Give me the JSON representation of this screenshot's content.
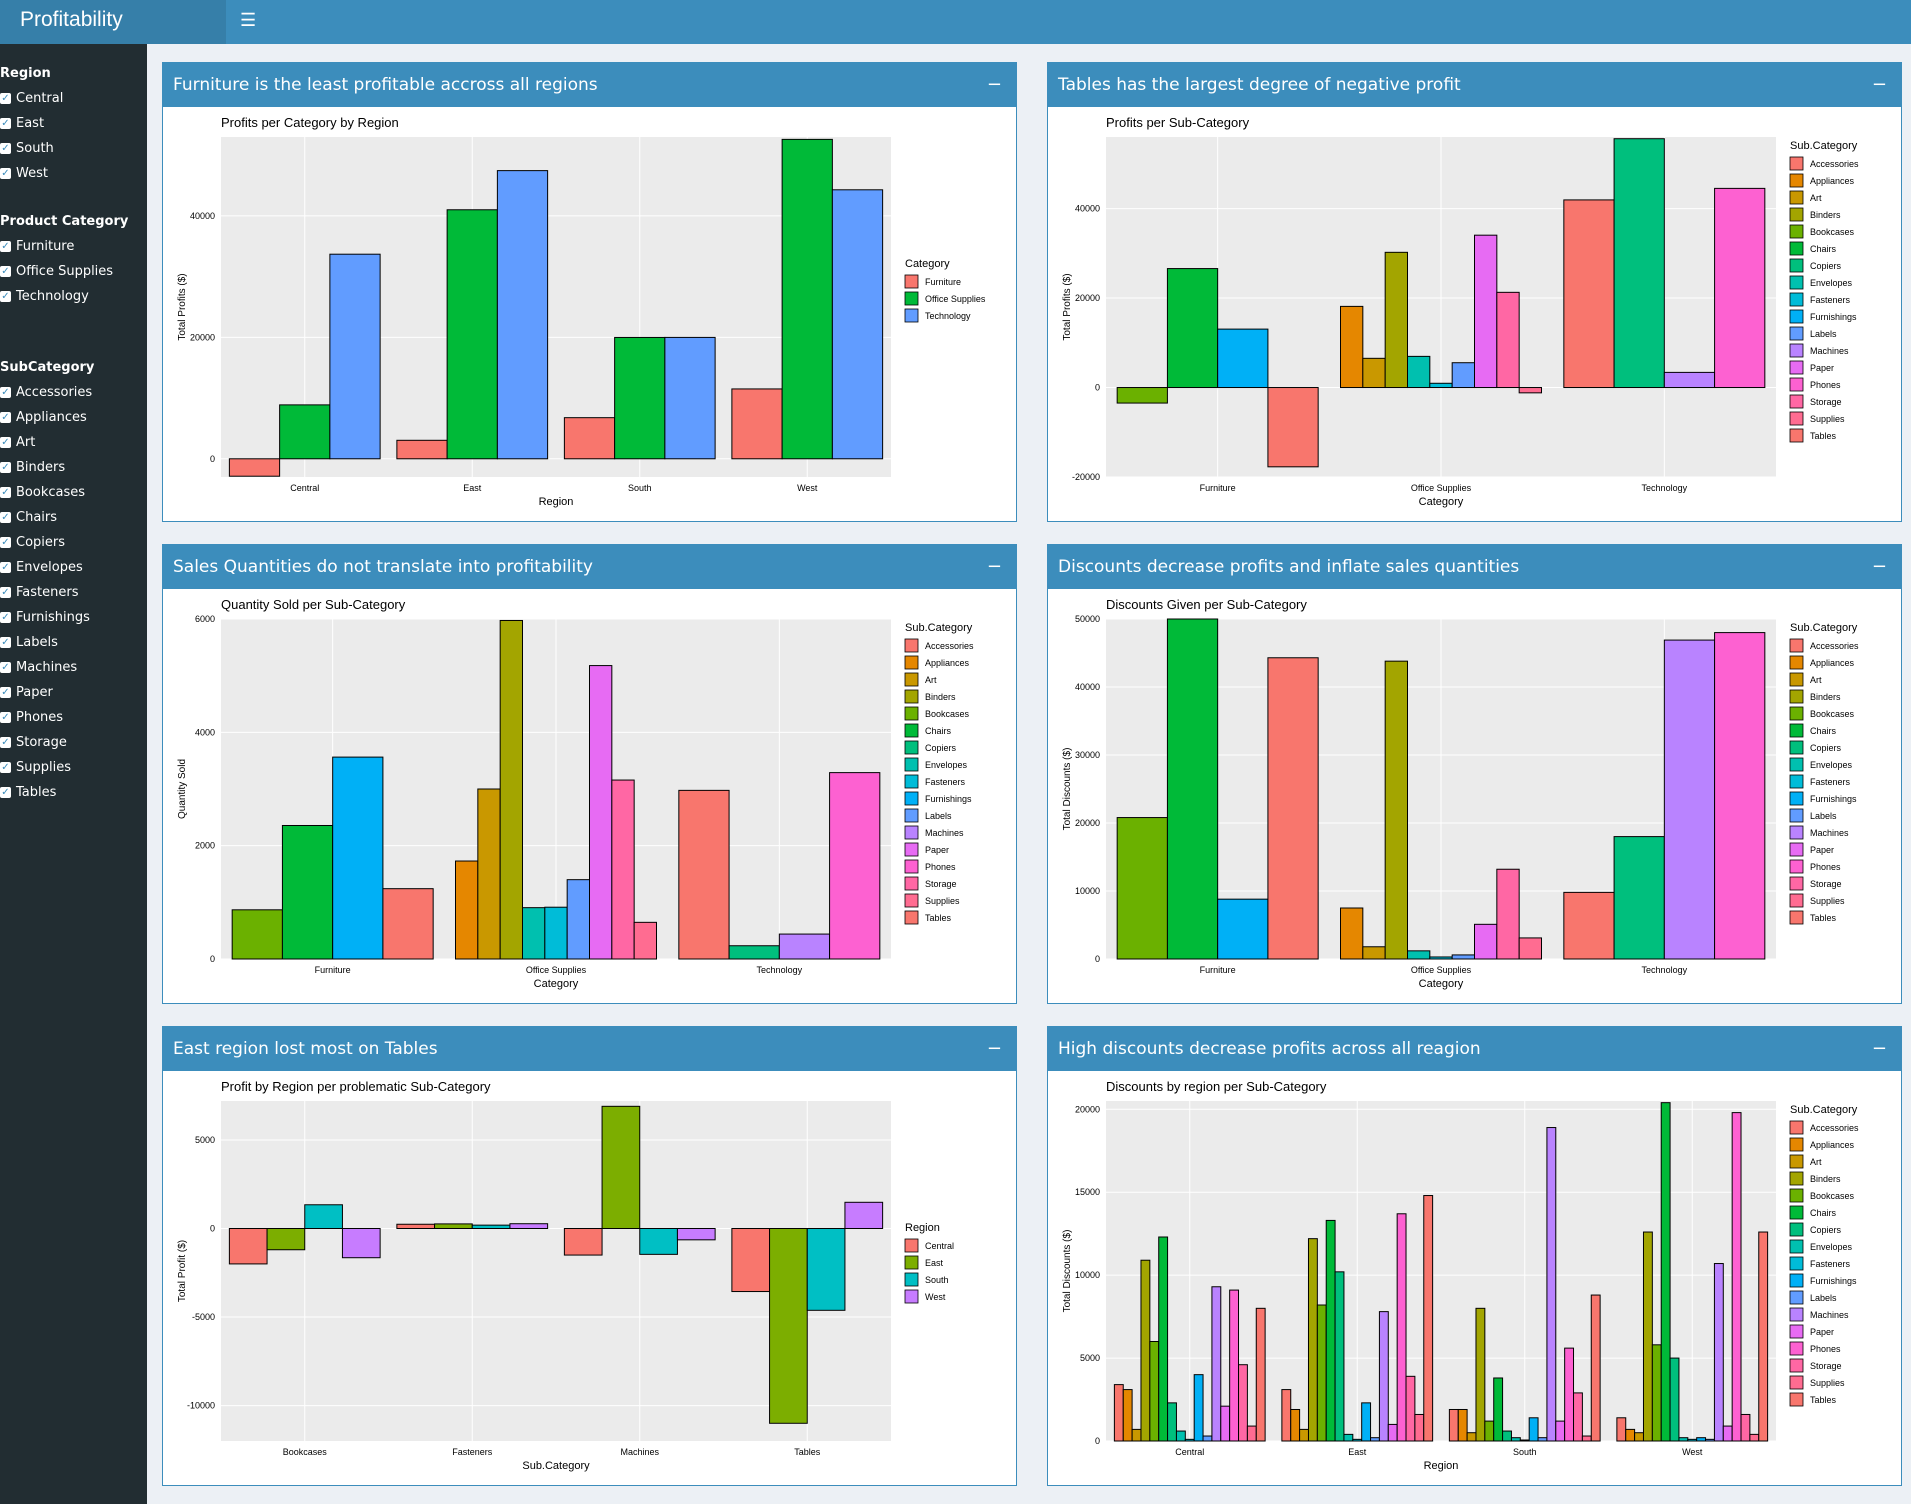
{
  "app": {
    "title": "Profitability Dashboard",
    "menu_icon": "hamburger-icon"
  },
  "sidebar": {
    "groups": [
      {
        "title": "Region",
        "items": [
          "Central",
          "East",
          "South",
          "West"
        ]
      },
      {
        "title": "Product Category",
        "items": [
          "Furniture",
          "Office Supplies",
          "Technology"
        ]
      },
      {
        "title": "SubCategory",
        "items": [
          "Accessories",
          "Appliances",
          "Art",
          "Binders",
          "Bookcases",
          "Chairs",
          "Copiers",
          "Envelopes",
          "Fasteners",
          "Furnishings",
          "Labels",
          "Machines",
          "Paper",
          "Phones",
          "Storage",
          "Supplies",
          "Tables"
        ]
      }
    ]
  },
  "colors": {
    "header": "#3c8dbc",
    "sidebar": "#222d32",
    "cat": [
      "#f8766d",
      "#00ba38",
      "#619cff"
    ],
    "region": [
      "#f8766d",
      "#7cae00",
      "#00bfc4",
      "#c77cff"
    ],
    "sub": [
      "#f8766d",
      "#e58700",
      "#c99800",
      "#a3a500",
      "#6bb100",
      "#00ba38",
      "#00bf7d",
      "#00c0af",
      "#00bcd8",
      "#00b0f6",
      "#619cff",
      "#b983ff",
      "#e76bf3",
      "#fd61d1",
      "#ff67a4",
      "#ff6c91",
      "#f8766d"
    ]
  },
  "panels": [
    {
      "title": "Furniture is the least profitable accross all regions",
      "collapse": "−"
    },
    {
      "title": "Tables has the largest degree of negative profit",
      "collapse": "−"
    },
    {
      "title": "Sales Quantities do not translate into profitability",
      "collapse": "−"
    },
    {
      "title": "Discounts decrease profits and inflate sales quantities",
      "collapse": "−"
    },
    {
      "title": "East region lost most on Tables",
      "collapse": "−"
    },
    {
      "title": "High discounts decrease profits across all reagion",
      "collapse": "−"
    }
  ],
  "chart_data": [
    {
      "type": "bar",
      "title": "Profits per Category by Region",
      "xlabel": "Region",
      "ylabel": "Total Profits ($)",
      "categories": [
        "Central",
        "East",
        "South",
        "West"
      ],
      "ylim": [
        -3000,
        53000
      ],
      "yticks": [
        0,
        20000,
        40000
      ],
      "legend_title": "Category",
      "series": [
        {
          "name": "Furniture",
          "color": "#f8766d",
          "values": [
            -2871,
            3046,
            6772,
            11505
          ]
        },
        {
          "name": "Office Supplies",
          "color": "#00ba38",
          "values": [
            8880,
            41015,
            19986,
            52610
          ]
        },
        {
          "name": "Technology",
          "color": "#619cff",
          "values": [
            33697,
            47462,
            19992,
            44304
          ]
        }
      ]
    },
    {
      "type": "bar",
      "title": "Profits per Sub-Category",
      "xlabel": "Category",
      "ylabel": "Total Profits ($)",
      "categories": [
        "Furniture",
        "Office Supplies",
        "Technology"
      ],
      "ylim": [
        -20000,
        56000
      ],
      "yticks": [
        -20000,
        0,
        20000,
        40000
      ],
      "legend_title": "Sub.Category",
      "groups": [
        [
          {
            "name": "Bookcases",
            "value": -3473
          },
          {
            "name": "Chairs",
            "value": 26590
          },
          {
            "name": "Furnishings",
            "value": 13059
          },
          {
            "name": "Tables",
            "value": -17725
          }
        ],
        [
          {
            "name": "Appliances",
            "value": 18138
          },
          {
            "name": "Art",
            "value": 6528
          },
          {
            "name": "Binders",
            "value": 30222
          },
          {
            "name": "Envelopes",
            "value": 6964
          },
          {
            "name": "Fasteners",
            "value": 950
          },
          {
            "name": "Labels",
            "value": 5546
          },
          {
            "name": "Paper",
            "value": 34054
          },
          {
            "name": "Storage",
            "value": 21279
          },
          {
            "name": "Supplies",
            "value": -1189
          }
        ],
        [
          {
            "name": "Accessories",
            "value": 41937
          },
          {
            "name": "Copiers",
            "value": 55618
          },
          {
            "name": "Machines",
            "value": 3385
          },
          {
            "name": "Phones",
            "value": 44516
          }
        ]
      ]
    },
    {
      "type": "bar",
      "title": "Quantity Sold per Sub-Category",
      "xlabel": "Category",
      "ylabel": "Quantity Sold",
      "categories": [
        "Furniture",
        "Office Supplies",
        "Technology"
      ],
      "ylim": [
        0,
        6000
      ],
      "yticks": [
        0,
        2000,
        4000,
        6000
      ],
      "legend_title": "Sub.Category",
      "groups": [
        [
          {
            "name": "Bookcases",
            "value": 868
          },
          {
            "name": "Chairs",
            "value": 2356
          },
          {
            "name": "Furnishings",
            "value": 3563
          },
          {
            "name": "Tables",
            "value": 1241
          }
        ],
        [
          {
            "name": "Appliances",
            "value": 1729
          },
          {
            "name": "Art",
            "value": 3000
          },
          {
            "name": "Binders",
            "value": 5974
          },
          {
            "name": "Envelopes",
            "value": 906
          },
          {
            "name": "Fasteners",
            "value": 914
          },
          {
            "name": "Labels",
            "value": 1400
          },
          {
            "name": "Paper",
            "value": 5178
          },
          {
            "name": "Storage",
            "value": 3158
          },
          {
            "name": "Supplies",
            "value": 647
          }
        ],
        [
          {
            "name": "Accessories",
            "value": 2976
          },
          {
            "name": "Copiers",
            "value": 234
          },
          {
            "name": "Machines",
            "value": 440
          },
          {
            "name": "Phones",
            "value": 3289
          }
        ]
      ]
    },
    {
      "type": "bar",
      "title": "Discounts Given per Sub-Category",
      "xlabel": "Category",
      "ylabel": "Total Discounts ($)",
      "categories": [
        "Furniture",
        "Office Supplies",
        "Technology"
      ],
      "ylim": [
        0,
        50000
      ],
      "yticks": [
        0,
        10000,
        20000,
        30000,
        40000,
        50000
      ],
      "legend_title": "Sub.Category",
      "groups": [
        [
          {
            "name": "Bookcases",
            "value": 20800
          },
          {
            "name": "Chairs",
            "value": 50000
          },
          {
            "name": "Furnishings",
            "value": 8800
          },
          {
            "name": "Tables",
            "value": 44300
          }
        ],
        [
          {
            "name": "Appliances",
            "value": 7500
          },
          {
            "name": "Art",
            "value": 1800
          },
          {
            "name": "Binders",
            "value": 43800
          },
          {
            "name": "Envelopes",
            "value": 1200
          },
          {
            "name": "Fasteners",
            "value": 300
          },
          {
            "name": "Labels",
            "value": 600
          },
          {
            "name": "Paper",
            "value": 5100
          },
          {
            "name": "Storage",
            "value": 13200
          },
          {
            "name": "Supplies",
            "value": 3100
          }
        ],
        [
          {
            "name": "Accessories",
            "value": 9800
          },
          {
            "name": "Copiers",
            "value": 18000
          },
          {
            "name": "Machines",
            "value": 46900
          },
          {
            "name": "Phones",
            "value": 48000
          }
        ]
      ]
    },
    {
      "type": "bar",
      "title": "Profit by Region per problematic Sub-Category",
      "xlabel": "Sub.Category",
      "ylabel": "Total Profit ($)",
      "categories": [
        "Bookcases",
        "Fasteners",
        "Machines",
        "Tables"
      ],
      "ylim": [
        -12000,
        7200
      ],
      "yticks": [
        -10000,
        -5000,
        0,
        5000
      ],
      "legend_title": "Region",
      "series": [
        {
          "name": "Central",
          "color": "#f8766d",
          "values": [
            -2000,
            240,
            -1500,
            -3560
          ]
        },
        {
          "name": "East",
          "color": "#7cae00",
          "values": [
            -1200,
            260,
            6900,
            -11000
          ]
        },
        {
          "name": "South",
          "color": "#00bfc4",
          "values": [
            1340,
            190,
            -1460,
            -4620
          ]
        },
        {
          "name": "West",
          "color": "#c77cff",
          "values": [
            -1650,
            270,
            -640,
            1480
          ]
        }
      ]
    },
    {
      "type": "bar",
      "title": "Discounts by region per Sub-Category",
      "xlabel": "Region",
      "ylabel": "Total Discounts ($)",
      "categories": [
        "Central",
        "East",
        "South",
        "West"
      ],
      "ylim": [
        0,
        20500
      ],
      "yticks": [
        0,
        5000,
        10000,
        15000,
        20000
      ],
      "legend_title": "Sub.Category",
      "subcats": [
        "Accessories",
        "Appliances",
        "Art",
        "Binders",
        "Bookcases",
        "Chairs",
        "Copiers",
        "Envelopes",
        "Fasteners",
        "Furnishings",
        "Labels",
        "Machines",
        "Paper",
        "Phones",
        "Storage",
        "Supplies",
        "Tables"
      ],
      "values": [
        [
          3400,
          3100,
          700,
          10900,
          6000,
          12300,
          2300,
          600,
          100,
          4000,
          300,
          9300,
          2100,
          9100,
          4600,
          900,
          8000
        ],
        [
          3100,
          1900,
          700,
          12200,
          8200,
          13300,
          10200,
          400,
          100,
          2300,
          200,
          7800,
          1000,
          13700,
          3900,
          1600,
          14800
        ],
        [
          1900,
          1900,
          500,
          8000,
          1200,
          3800,
          600,
          200,
          60,
          1400,
          200,
          18900,
          1200,
          5600,
          2900,
          300,
          8800
        ],
        [
          1400,
          700,
          500,
          12600,
          5800,
          20400,
          5000,
          200,
          100,
          200,
          100,
          10700,
          900,
          19800,
          1600,
          400,
          12600
        ]
      ]
    }
  ]
}
